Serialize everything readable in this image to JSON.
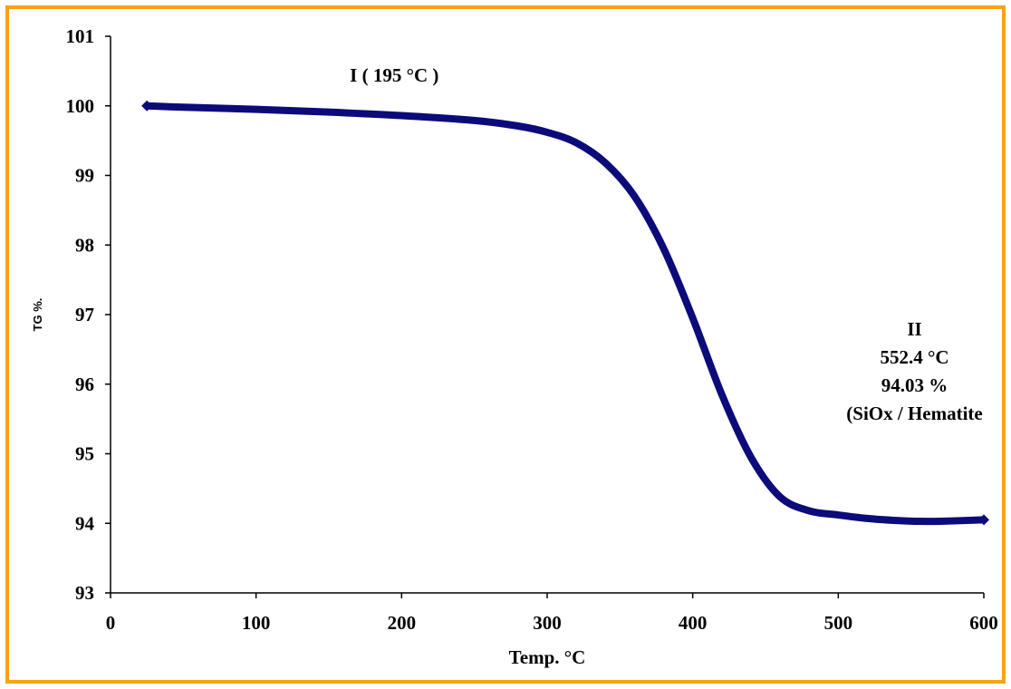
{
  "chart_data": {
    "type": "line",
    "title": "",
    "xlabel": "Temp. °C",
    "ylabel": "TG %.",
    "xlim": [
      0,
      600
    ],
    "ylim": [
      93,
      101
    ],
    "x_ticks": [
      0,
      100,
      200,
      300,
      400,
      500,
      600
    ],
    "y_ticks": [
      93,
      94,
      95,
      96,
      97,
      98,
      99,
      100,
      101
    ],
    "grid": false,
    "legend": "none",
    "series": [
      {
        "color": "#0b0b7a",
        "x": [
          25,
          50,
          100,
          150,
          200,
          250,
          280,
          300,
          320,
          340,
          360,
          380,
          400,
          420,
          440,
          460,
          480,
          500,
          520,
          540,
          552.4,
          570,
          600
        ],
        "y": [
          100.0,
          99.98,
          99.95,
          99.91,
          99.86,
          99.79,
          99.71,
          99.62,
          99.47,
          99.18,
          98.7,
          97.95,
          96.95,
          95.85,
          94.95,
          94.38,
          94.18,
          94.12,
          94.07,
          94.04,
          94.03,
          94.03,
          94.05
        ]
      }
    ],
    "annotations": [
      {
        "id": "stage-1",
        "lines": [
          "I ( 195 °C )"
        ],
        "x": 195,
        "y": 100.35
      },
      {
        "id": "stage-2",
        "lines": [
          "II",
          "552.4 °C",
          "94.03 %",
          "(SiOx / Hematite"
        ],
        "x": 552.4,
        "y": 96.7
      }
    ]
  }
}
